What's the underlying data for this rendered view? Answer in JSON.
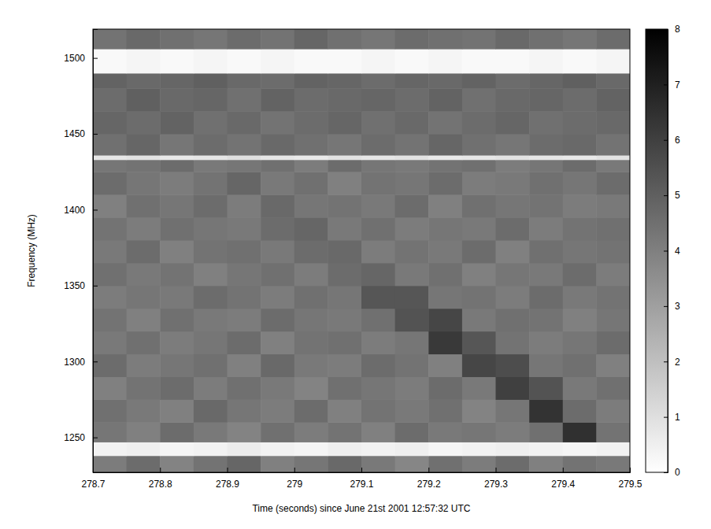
{
  "chart_data": {
    "type": "heatmap",
    "xlabel": "Time (seconds) since June 21st 2001 12:57:32 UTC",
    "ylabel": "Frequency (MHz)",
    "xlim": [
      278.7,
      279.5
    ],
    "ylim": [
      1227,
      1519
    ],
    "xticks": [
      278.7,
      278.8,
      278.9,
      279,
      279.1,
      279.2,
      279.3,
      279.4,
      279.5
    ],
    "yticks": [
      1250,
      1300,
      1350,
      1400,
      1450,
      1500
    ],
    "x_edges": [
      278.7,
      278.75,
      278.8,
      278.85,
      278.9,
      278.95,
      279,
      279.05,
      279.1,
      279.15,
      279.2,
      279.25,
      279.3,
      279.35,
      279.4,
      279.45,
      279.5
    ],
    "y_edges": [
      1227,
      1238,
      1247,
      1260,
      1275,
      1290,
      1305,
      1320,
      1335,
      1350,
      1365,
      1380,
      1395,
      1410,
      1425,
      1433,
      1436,
      1450,
      1465,
      1480,
      1490,
      1506,
      1519
    ],
    "cells": [
      [
        4.1,
        4.6,
        3.9,
        4.4,
        4.8,
        4.0,
        4.3,
        4.7,
        4.2,
        3.8,
        4.5,
        4.1,
        4.6,
        4.0,
        4.4,
        4.2
      ],
      [
        0.4,
        0.5,
        0.3,
        0.4,
        0.6,
        0.4,
        0.3,
        0.5,
        0.4,
        0.5,
        0.3,
        0.4,
        0.5,
        0.4,
        0.3,
        0.4
      ],
      [
        4.3,
        4.0,
        4.6,
        4.2,
        3.9,
        4.5,
        4.1,
        4.4,
        4.0,
        4.6,
        4.2,
        4.3,
        4.1,
        4.5,
        6.5,
        4.4
      ],
      [
        4.5,
        4.2,
        4.0,
        4.7,
        4.3,
        4.1,
        4.6,
        4.0,
        4.4,
        4.2,
        4.5,
        3.9,
        4.3,
        6.4,
        4.6,
        4.1
      ],
      [
        4.0,
        4.4,
        4.6,
        4.1,
        4.5,
        4.2,
        3.9,
        4.5,
        4.3,
        4.1,
        4.6,
        4.2,
        6.0,
        5.4,
        4.2,
        4.5
      ],
      [
        4.6,
        4.1,
        4.3,
        4.5,
        4.0,
        4.7,
        4.2,
        4.1,
        4.6,
        4.4,
        4.0,
        5.8,
        5.6,
        4.3,
        4.5,
        4.0
      ],
      [
        4.2,
        4.5,
        4.1,
        4.3,
        4.6,
        4.0,
        4.4,
        4.5,
        4.1,
        4.3,
        6.2,
        5.3,
        4.4,
        4.1,
        4.3,
        4.6
      ],
      [
        4.4,
        4.0,
        4.5,
        4.2,
        4.1,
        4.6,
        4.3,
        4.2,
        4.5,
        5.4,
        5.8,
        4.2,
        4.5,
        4.4,
        4.0,
        4.3
      ],
      [
        4.1,
        4.3,
        4.2,
        4.6,
        4.4,
        4.1,
        4.5,
        4.3,
        5.3,
        5.3,
        4.3,
        4.4,
        4.1,
        4.6,
        4.2,
        4.4
      ],
      [
        4.5,
        4.2,
        4.4,
        4.0,
        4.3,
        4.5,
        4.1,
        4.6,
        4.8,
        4.2,
        4.5,
        4.0,
        4.3,
        4.2,
        4.6,
        4.1
      ],
      [
        4.2,
        4.6,
        4.0,
        4.4,
        4.5,
        4.2,
        4.6,
        4.7,
        4.1,
        4.4,
        4.2,
        4.6,
        4.0,
        4.5,
        4.3,
        4.4
      ],
      [
        4.4,
        4.1,
        4.5,
        4.3,
        4.2,
        4.6,
        4.8,
        4.2,
        4.5,
        4.1,
        4.3,
        4.2,
        4.6,
        4.1,
        4.4,
        4.5
      ],
      [
        4.0,
        4.5,
        4.3,
        4.6,
        4.1,
        4.7,
        4.3,
        4.4,
        4.2,
        4.6,
        4.0,
        4.5,
        4.3,
        4.4,
        4.1,
        4.2
      ],
      [
        4.6,
        4.3,
        4.1,
        4.4,
        4.8,
        4.2,
        4.5,
        4.0,
        4.4,
        4.3,
        4.6,
        4.1,
        4.2,
        4.5,
        4.3,
        4.6
      ],
      [
        4.3,
        4.4,
        4.6,
        4.2,
        4.3,
        4.5,
        4.1,
        4.6,
        4.3,
        4.2,
        4.4,
        4.5,
        4.1,
        4.3,
        4.6,
        4.2
      ],
      [
        0.8,
        0.9,
        0.7,
        0.8,
        1.0,
        0.8,
        0.7,
        0.9,
        0.8,
        0.9,
        0.7,
        0.8,
        0.9,
        0.8,
        0.7,
        0.9
      ],
      [
        4.5,
        4.8,
        4.3,
        4.6,
        4.4,
        4.7,
        4.5,
        4.3,
        4.6,
        4.4,
        4.8,
        4.5,
        4.3,
        4.6,
        4.7,
        4.4
      ],
      [
        4.8,
        4.6,
        4.9,
        4.5,
        4.7,
        4.4,
        4.6,
        4.8,
        4.5,
        4.7,
        4.4,
        4.6,
        4.8,
        4.5,
        4.6,
        4.7
      ],
      [
        4.6,
        5.0,
        4.7,
        4.8,
        4.5,
        4.9,
        4.6,
        4.7,
        4.8,
        4.6,
        4.9,
        4.5,
        4.7,
        4.8,
        4.6,
        4.9
      ],
      [
        4.9,
        4.7,
        4.8,
        5.0,
        4.7,
        4.6,
        4.9,
        4.8,
        4.6,
        4.8,
        4.7,
        4.9,
        4.6,
        4.8,
        5.0,
        4.7
      ],
      [
        0.2,
        0.3,
        0.2,
        0.3,
        0.2,
        0.3,
        0.2,
        0.2,
        0.3,
        0.2,
        0.3,
        0.2,
        0.2,
        0.3,
        0.2,
        0.3
      ],
      [
        4.4,
        4.7,
        4.5,
        4.3,
        4.6,
        4.4,
        4.8,
        4.5,
        4.3,
        4.6,
        4.5,
        4.4,
        4.7,
        4.5,
        4.3,
        4.6
      ]
    ],
    "zlim": [
      0,
      8
    ],
    "zticks": [
      0,
      1,
      2,
      3,
      4,
      5,
      6,
      7,
      8
    ]
  }
}
